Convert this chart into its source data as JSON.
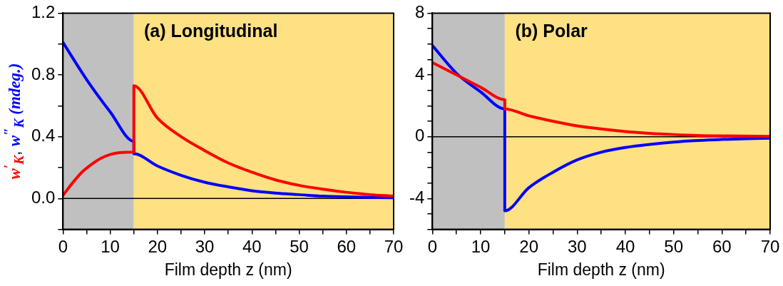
{
  "chart_data": [
    {
      "type": "line",
      "title": "(a) Longitudinal",
      "xlabel": "Film depth z (nm)",
      "ylabel": "w$^{′}$$_{K}$, w$^{″}$$_{K}$ (mdeg.)",
      "xlim": [
        0,
        70
      ],
      "xticks": [
        0,
        {
          "value": 5,
          "label": null
        },
        10,
        {
          "value": 15,
          "label": null
        },
        20,
        {
          "value": 25,
          "label": null
        },
        30,
        {
          "value": 35,
          "label": null
        },
        40,
        {
          "value": 45,
          "label": null
        },
        50,
        {
          "value": 55,
          "label": null
        },
        60,
        {
          "value": 65,
          "label": null
        },
        70
      ],
      "ylim": [
        -0.2,
        1.2
      ],
      "yticks": [
        {
          "value": -0.2,
          "label": null
        },
        {
          "value": 0,
          "label": "0.0"
        },
        {
          "value": 0.2,
          "label": null
        },
        0.4,
        {
          "value": 0.6,
          "label": null
        },
        0.8,
        {
          "value": 1.0,
          "label": null
        },
        1.2
      ],
      "grid": false,
      "legend": false,
      "marker": "none",
      "line_style": "solid",
      "bands": [
        {
          "axis": "x",
          "from": 0,
          "to": 15,
          "color": "#c0c0c0"
        },
        {
          "axis": "x",
          "from": 15,
          "to": 70,
          "color": "#fde183"
        }
      ],
      "ref_lines": [
        {
          "axis": "y",
          "value": 0,
          "color": "#000000"
        }
      ],
      "series": [
        {
          "color": "#ff0000",
          "x": [
            0,
            2,
            4,
            6,
            8,
            10,
            12,
            15,
            15,
            20,
            25,
            30,
            35,
            40,
            45,
            50,
            55,
            60,
            65,
            70
          ],
          "values": [
            0.02,
            0.1,
            0.17,
            0.22,
            0.26,
            0.285,
            0.297,
            0.3,
            0.73,
            0.52,
            0.4,
            0.31,
            0.23,
            0.17,
            0.12,
            0.085,
            0.06,
            0.04,
            0.025,
            0.015
          ]
        },
        {
          "color": "#0000ff",
          "x": [
            0,
            5,
            10,
            15,
            15,
            20,
            25,
            30,
            35,
            40,
            45,
            50,
            55,
            60,
            70
          ],
          "values": [
            1.01,
            0.77,
            0.56,
            0.37,
            0.29,
            0.21,
            0.15,
            0.105,
            0.075,
            0.05,
            0.035,
            0.025,
            0.015,
            0.01,
            0.005
          ]
        }
      ]
    },
    {
      "type": "line",
      "title": "(b) Polar",
      "xlabel": "Film depth z (nm)",
      "xlim": [
        0,
        70
      ],
      "xticks": [
        0,
        {
          "value": 5,
          "label": null
        },
        10,
        {
          "value": 15,
          "label": null
        },
        20,
        {
          "value": 25,
          "label": null
        },
        30,
        {
          "value": 35,
          "label": null
        },
        40,
        {
          "value": 45,
          "label": null
        },
        50,
        {
          "value": 55,
          "label": null
        },
        60,
        {
          "value": 65,
          "label": null
        },
        70
      ],
      "ylim": [
        -6,
        8
      ],
      "yticks": [
        {
          "value": -6,
          "label": null
        },
        {
          "value": -5,
          "label": null
        },
        -4,
        {
          "value": -3,
          "label": null
        },
        {
          "value": -2,
          "label": null
        },
        {
          "value": -1,
          "label": null
        },
        0,
        {
          "value": 1,
          "label": null
        },
        {
          "value": 2,
          "label": null
        },
        {
          "value": 3,
          "label": null
        },
        4,
        {
          "value": 5,
          "label": null
        },
        {
          "value": 6,
          "label": null
        },
        {
          "value": 7,
          "label": null
        },
        8
      ],
      "grid": false,
      "legend": false,
      "marker": "none",
      "line_style": "solid",
      "bands": [
        {
          "axis": "x",
          "from": 0,
          "to": 15,
          "color": "#c0c0c0"
        },
        {
          "axis": "x",
          "from": 15,
          "to": 70,
          "color": "#fde183"
        }
      ],
      "ref_lines": [
        {
          "axis": "y",
          "value": 0,
          "color": "#000000"
        }
      ],
      "series": [
        {
          "color": "#ff0000",
          "x": [
            0,
            5,
            10,
            15,
            15,
            20,
            25,
            30,
            35,
            40,
            45,
            50,
            55,
            60,
            70
          ],
          "values": [
            4.8,
            4.0,
            3.2,
            2.4,
            1.8,
            1.35,
            1.0,
            0.7,
            0.5,
            0.33,
            0.22,
            0.14,
            0.08,
            0.05,
            0.02
          ]
        },
        {
          "color": "#0000ff",
          "x": [
            0,
            5,
            10,
            15,
            15,
            20,
            25,
            30,
            35,
            40,
            45,
            50,
            55,
            60,
            65,
            70
          ],
          "values": [
            5.9,
            4.1,
            2.9,
            1.8,
            -4.8,
            -3.3,
            -2.3,
            -1.5,
            -1.0,
            -0.7,
            -0.5,
            -0.35,
            -0.25,
            -0.18,
            -0.13,
            -0.1
          ]
        }
      ]
    }
  ]
}
